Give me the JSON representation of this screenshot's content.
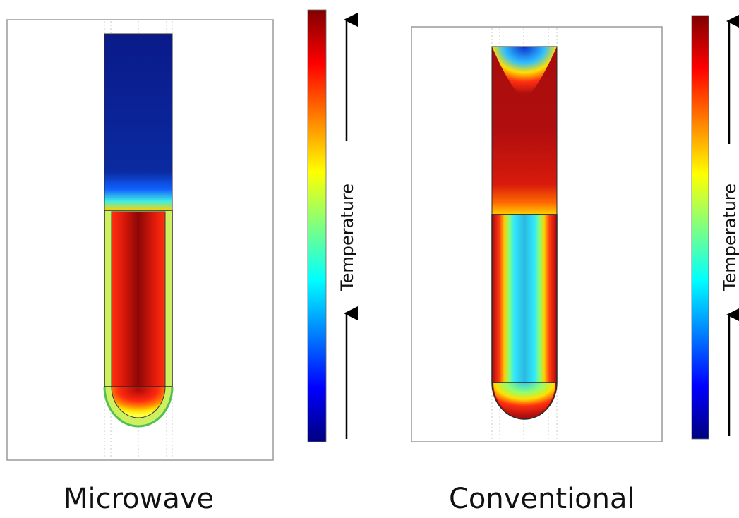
{
  "panels": [
    {
      "caption": "Microwave",
      "colorbar_label": "Temperature"
    },
    {
      "caption": "Conventional",
      "colorbar_label": "Temperature"
    }
  ],
  "colormap": [
    "#00007f",
    "#0000ff",
    "#0080ff",
    "#00ffff",
    "#80ff80",
    "#ffff00",
    "#ff8000",
    "#ff0000",
    "#800000"
  ],
  "tube_colors": {
    "microwave": {
      "gas": "#0a1f8f",
      "liquid_core": "#a50a0a",
      "liquid_mid": "#ff2a10",
      "wall": "#c8f060",
      "outline": "#222222"
    },
    "conventional": {
      "gas": "#b10e0e",
      "liquid_core": "#3ccde8",
      "liquid_mid": "#38e0ff",
      "wall": "#b50d0d",
      "outline": "#222222"
    }
  }
}
